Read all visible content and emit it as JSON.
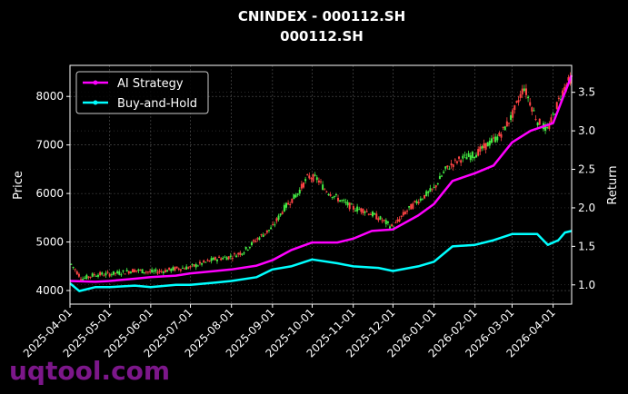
{
  "chart_data": {
    "type": "line",
    "title": "CNINDEX - 000112.SH",
    "subtitle": "000112.SH",
    "xlabel": "",
    "ylabel_left": "Price",
    "ylabel_right": "Return",
    "x_ticks": [
      "2025-04-01",
      "2025-05-01",
      "2025-06-01",
      "2025-07-01",
      "2025-08-01",
      "2025-09-01",
      "2025-10-01",
      "2025-11-01",
      "2025-12-01",
      "2026-01-01",
      "2026-02-01",
      "2026-03-01",
      "2026-04-01"
    ],
    "xlim": [
      "2025-04-01",
      "2026-04-15"
    ],
    "ylim_left": [
      3720,
      8640
    ],
    "ylim_right": [
      0.75,
      3.85
    ],
    "y_ticks_left": [
      4000,
      5000,
      6000,
      7000,
      8000
    ],
    "y_ticks_right": [
      1.0,
      1.5,
      2.0,
      2.5,
      3.0,
      3.5
    ],
    "grid": true,
    "legend_position": "top-left",
    "colors": {
      "ai": "#ff00ff",
      "bh": "#00ffff",
      "up": "#44ee44",
      "down": "#ff4444",
      "grid": "#555555"
    },
    "price_series": {
      "name": "",
      "points": [
        [
          "2025-04-01",
          4580
        ],
        [
          "2025-04-10",
          4240
        ],
        [
          "2025-04-20",
          4330
        ],
        [
          "2025-05-01",
          4340
        ],
        [
          "2025-05-10",
          4370
        ],
        [
          "2025-05-20",
          4420
        ],
        [
          "2025-06-01",
          4380
        ],
        [
          "2025-06-10",
          4400
        ],
        [
          "2025-06-20",
          4450
        ],
        [
          "2025-07-01",
          4480
        ],
        [
          "2025-07-10",
          4560
        ],
        [
          "2025-07-20",
          4650
        ],
        [
          "2025-08-01",
          4700
        ],
        [
          "2025-08-10",
          4800
        ],
        [
          "2025-08-20",
          5050
        ],
        [
          "2025-09-01",
          5300
        ],
        [
          "2025-09-10",
          5700
        ],
        [
          "2025-09-20",
          6000
        ],
        [
          "2025-09-28",
          6350
        ],
        [
          "2025-10-05",
          6300
        ],
        [
          "2025-10-10",
          6100
        ],
        [
          "2025-10-20",
          5900
        ],
        [
          "2025-11-01",
          5700
        ],
        [
          "2025-11-10",
          5650
        ],
        [
          "2025-11-20",
          5500
        ],
        [
          "2025-12-01",
          5300
        ],
        [
          "2025-12-10",
          5600
        ],
        [
          "2025-12-20",
          5850
        ],
        [
          "2026-01-01",
          6100
        ],
        [
          "2026-01-10",
          6500
        ],
        [
          "2026-01-20",
          6700
        ],
        [
          "2026-02-01",
          6800
        ],
        [
          "2026-02-10",
          7000
        ],
        [
          "2026-02-20",
          7200
        ],
        [
          "2026-03-01",
          7600
        ],
        [
          "2026-03-10",
          8200
        ],
        [
          "2026-03-20",
          7500
        ],
        [
          "2026-03-28",
          7300
        ],
        [
          "2026-04-05",
          7900
        ],
        [
          "2026-04-10",
          8200
        ],
        [
          "2026-04-15",
          8400
        ]
      ]
    },
    "series": [
      {
        "name": "AI Strategy",
        "points": [
          [
            "2025-04-01",
            1.05
          ],
          [
            "2025-04-20",
            1.04
          ],
          [
            "2025-05-01",
            1.05
          ],
          [
            "2025-05-20",
            1.08
          ],
          [
            "2025-06-01",
            1.1
          ],
          [
            "2025-06-20",
            1.12
          ],
          [
            "2025-07-01",
            1.15
          ],
          [
            "2025-07-20",
            1.18
          ],
          [
            "2025-08-01",
            1.2
          ],
          [
            "2025-08-20",
            1.25
          ],
          [
            "2025-09-01",
            1.32
          ],
          [
            "2025-09-15",
            1.45
          ],
          [
            "2025-10-01",
            1.55
          ],
          [
            "2025-10-20",
            1.55
          ],
          [
            "2025-11-01",
            1.6
          ],
          [
            "2025-11-15",
            1.7
          ],
          [
            "2025-12-01",
            1.72
          ],
          [
            "2025-12-20",
            1.9
          ],
          [
            "2026-01-01",
            2.05
          ],
          [
            "2026-01-15",
            2.35
          ],
          [
            "2026-02-01",
            2.45
          ],
          [
            "2026-02-15",
            2.55
          ],
          [
            "2026-03-01",
            2.85
          ],
          [
            "2026-03-15",
            3.0
          ],
          [
            "2026-04-01",
            3.1
          ],
          [
            "2026-04-10",
            3.5
          ],
          [
            "2026-04-15",
            3.72
          ]
        ]
      },
      {
        "name": "Buy-and-Hold",
        "points": [
          [
            "2025-04-01",
            1.02
          ],
          [
            "2025-04-08",
            0.92
          ],
          [
            "2025-04-20",
            0.97
          ],
          [
            "2025-05-01",
            0.97
          ],
          [
            "2025-05-20",
            0.99
          ],
          [
            "2025-06-01",
            0.97
          ],
          [
            "2025-06-20",
            1.0
          ],
          [
            "2025-07-01",
            1.0
          ],
          [
            "2025-07-20",
            1.03
          ],
          [
            "2025-08-01",
            1.05
          ],
          [
            "2025-08-20",
            1.1
          ],
          [
            "2025-09-01",
            1.2
          ],
          [
            "2025-09-15",
            1.24
          ],
          [
            "2025-10-01",
            1.33
          ],
          [
            "2025-10-20",
            1.28
          ],
          [
            "2025-11-01",
            1.24
          ],
          [
            "2025-11-20",
            1.22
          ],
          [
            "2025-12-01",
            1.18
          ],
          [
            "2025-12-20",
            1.24
          ],
          [
            "2026-01-01",
            1.3
          ],
          [
            "2026-01-15",
            1.5
          ],
          [
            "2026-02-01",
            1.52
          ],
          [
            "2026-02-15",
            1.58
          ],
          [
            "2026-03-01",
            1.66
          ],
          [
            "2026-03-20",
            1.66
          ],
          [
            "2026-03-28",
            1.52
          ],
          [
            "2026-04-05",
            1.58
          ],
          [
            "2026-04-10",
            1.68
          ],
          [
            "2026-04-15",
            1.7
          ]
        ]
      }
    ]
  },
  "watermark": "uqtool.com"
}
